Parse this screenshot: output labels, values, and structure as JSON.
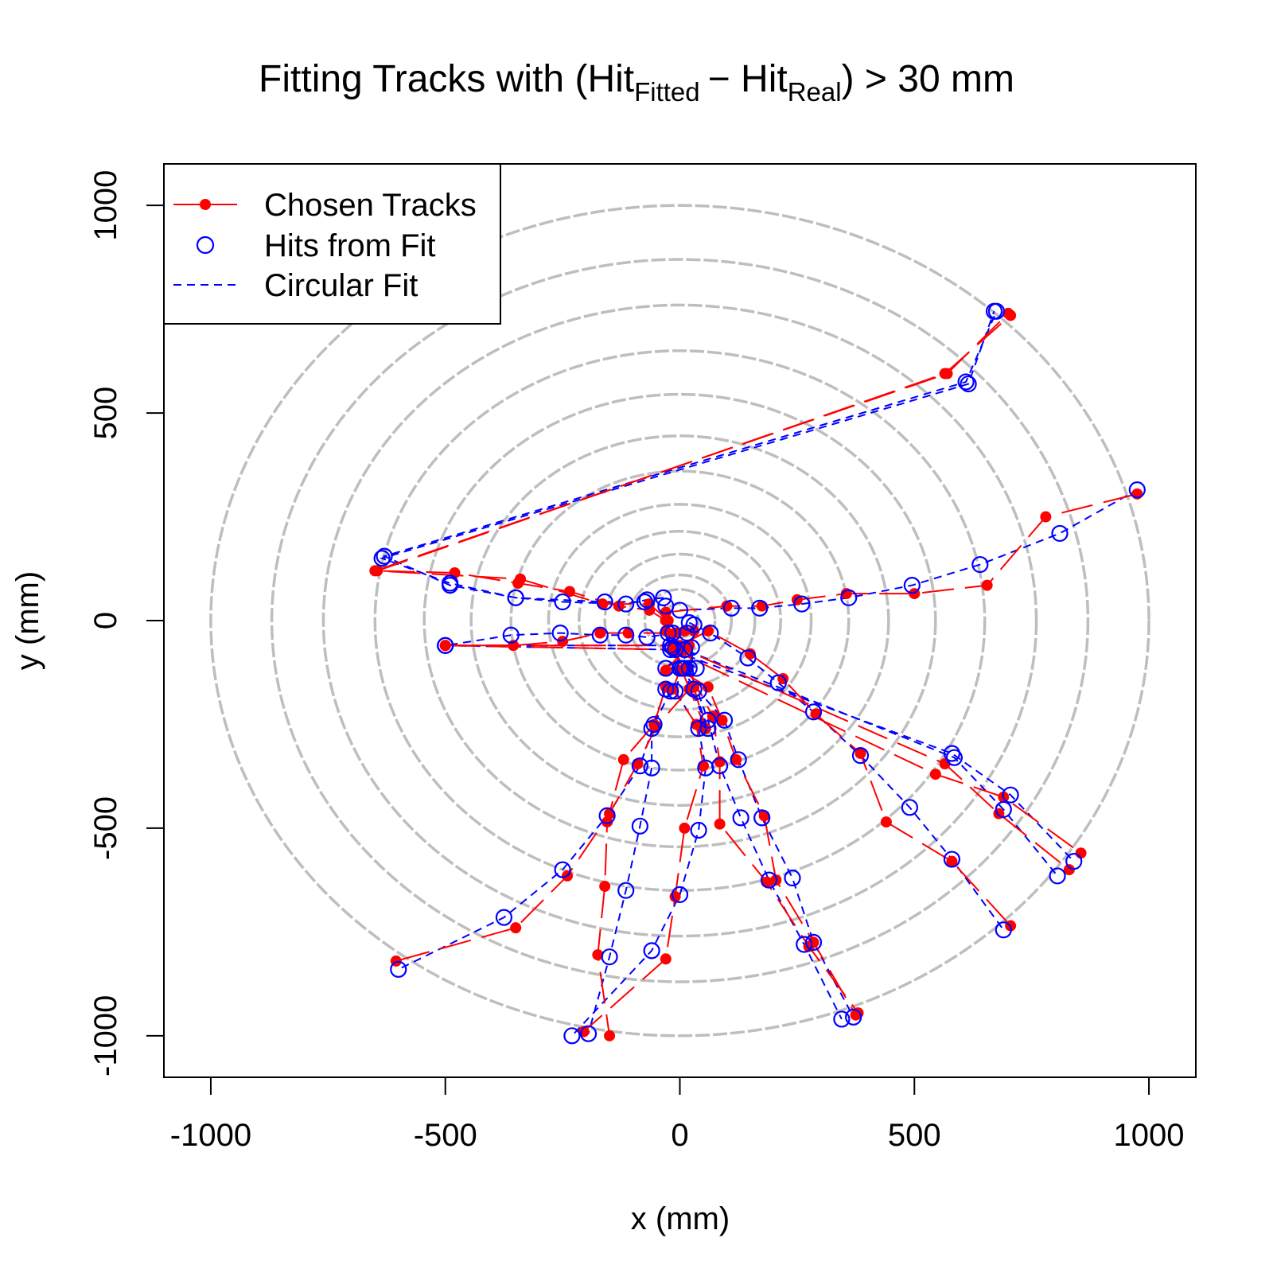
{
  "chart_data": {
    "type": "scatter",
    "title": {
      "prefix": "Fitting Tracks with (Hit",
      "sub1": "Fitted",
      "minus": "− Hit",
      "sub2": "Real",
      "suffix": ") > 30 mm"
    },
    "xlabel": "x (mm)",
    "ylabel": "y (mm)",
    "xlim": [
      -1100,
      1100
    ],
    "ylim": [
      -1100,
      1100
    ],
    "xticks": [
      -1000,
      -500,
      0,
      500,
      1000
    ],
    "yticks": [
      -1000,
      -500,
      0,
      500,
      1000
    ],
    "tick_labels": [
      "-1000",
      "-500",
      "0",
      "500",
      "1000"
    ],
    "grid": false,
    "detector_layer_radii": [
      40,
      75,
      110,
      160,
      215,
      280,
      360,
      445,
      545,
      650,
      760,
      870,
      1000
    ],
    "legend": {
      "position": "top-left",
      "entries": [
        "Chosen Tracks",
        "Hits from Fit",
        "Circular Fit"
      ]
    },
    "colors": {
      "real": "#ff0000",
      "fit": "#0000ff",
      "layers": "#bebebe"
    },
    "tracks": [
      {
        "real": [
          [
            -30,
            0
          ],
          [
            -65,
            25
          ],
          [
            -130,
            35
          ],
          [
            -235,
            70
          ],
          [
            -345,
            90
          ],
          [
            -480,
            115
          ],
          [
            -650,
            120
          ],
          [
            570,
            595
          ],
          [
            700,
            740
          ]
        ],
        "fit": [
          [
            -35,
            55
          ],
          [
            -70,
            50
          ],
          [
            -115,
            40
          ],
          [
            -250,
            45
          ],
          [
            -350,
            55
          ],
          [
            -490,
            90
          ],
          [
            -635,
            150
          ],
          [
            615,
            570
          ],
          [
            670,
            745
          ]
        ]
      },
      {
        "real": [
          [
            -25,
            0
          ],
          [
            -65,
            40
          ],
          [
            -165,
            40
          ],
          [
            -340,
            100
          ],
          [
            -645,
            120
          ],
          [
            565,
            595
          ],
          [
            705,
            735
          ]
        ],
        "fit": [
          [
            -30,
            35
          ],
          [
            -75,
            45
          ],
          [
            -160,
            45
          ],
          [
            -350,
            55
          ],
          [
            -490,
            85
          ],
          [
            -630,
            155
          ],
          [
            610,
            575
          ],
          [
            675,
            745
          ]
        ]
      },
      {
        "real": [
          [
            -30,
            20
          ],
          [
            100,
            35
          ],
          [
            175,
            35
          ],
          [
            250,
            50
          ],
          [
            355,
            65
          ],
          [
            500,
            65
          ],
          [
            655,
            85
          ],
          [
            780,
            250
          ],
          [
            975,
            305
          ]
        ],
        "fit": [
          [
            0,
            25
          ],
          [
            110,
            30
          ],
          [
            170,
            30
          ],
          [
            260,
            40
          ],
          [
            360,
            55
          ],
          [
            495,
            85
          ],
          [
            640,
            135
          ],
          [
            810,
            210
          ],
          [
            975,
            315
          ]
        ]
      },
      {
        "real": [
          [
            -10,
            -30
          ],
          [
            -110,
            -30
          ],
          [
            -170,
            -30
          ],
          [
            -250,
            -50
          ],
          [
            -355,
            -60
          ],
          [
            -500,
            -60
          ]
        ],
        "fit": [
          [
            -15,
            -30
          ],
          [
            -70,
            -40
          ],
          [
            -115,
            -35
          ],
          [
            -170,
            -35
          ],
          [
            -255,
            -30
          ],
          [
            -360,
            -35
          ],
          [
            -500,
            -60
          ]
        ]
      },
      {
        "real": [
          [
            -500,
            -60
          ],
          [
            -15,
            -70
          ],
          [
            545,
            -370
          ],
          [
            690,
            -425
          ],
          [
            855,
            -560
          ]
        ],
        "fit": [
          [
            -500,
            -60
          ],
          [
            -20,
            -70
          ],
          [
            580,
            -320
          ],
          [
            705,
            -420
          ],
          [
            840,
            -580
          ]
        ]
      },
      {
        "real": [
          [
            -500,
            -60
          ],
          [
            -10,
            -60
          ],
          [
            10,
            -70
          ],
          [
            565,
            -345
          ],
          [
            680,
            -465
          ],
          [
            830,
            -600
          ]
        ],
        "fit": [
          [
            -500,
            -60
          ],
          [
            -20,
            -60
          ],
          [
            10,
            -70
          ],
          [
            585,
            -330
          ],
          [
            690,
            -455
          ],
          [
            805,
            -615
          ]
        ]
      },
      {
        "real": [
          [
            0,
            -60
          ],
          [
            60,
            -25
          ],
          [
            150,
            -80
          ],
          [
            220,
            -140
          ],
          [
            290,
            -225
          ],
          [
            385,
            -320
          ],
          [
            440,
            -485
          ],
          [
            580,
            -580
          ],
          [
            705,
            -735
          ]
        ],
        "fit": [
          [
            20,
            -5
          ],
          [
            65,
            -30
          ],
          [
            145,
            -90
          ],
          [
            210,
            -150
          ],
          [
            285,
            -220
          ],
          [
            385,
            -325
          ],
          [
            490,
            -450
          ],
          [
            580,
            -575
          ],
          [
            690,
            -745
          ]
        ]
      },
      {
        "real": [
          [
            0,
            -120
          ],
          [
            60,
            -160
          ],
          [
            90,
            -240
          ],
          [
            120,
            -335
          ],
          [
            180,
            -470
          ],
          [
            205,
            -625
          ],
          [
            285,
            -775
          ],
          [
            375,
            -950
          ]
        ],
        "fit": [
          [
            0,
            -115
          ],
          [
            40,
            -170
          ],
          [
            95,
            -240
          ],
          [
            125,
            -335
          ],
          [
            175,
            -475
          ],
          [
            240,
            -620
          ],
          [
            285,
            -775
          ],
          [
            370,
            -955
          ]
        ]
      },
      {
        "real": [
          [
            15,
            -115
          ],
          [
            70,
            -230
          ],
          [
            85,
            -340
          ],
          [
            85,
            -490
          ],
          [
            185,
            -630
          ],
          [
            275,
            -785
          ],
          [
            380,
            -945
          ]
        ],
        "fit": [
          [
            20,
            -115
          ],
          [
            60,
            -240
          ],
          [
            85,
            -350
          ],
          [
            130,
            -475
          ],
          [
            190,
            -625
          ],
          [
            265,
            -780
          ],
          [
            345,
            -960
          ]
        ]
      },
      {
        "real": [
          [
            0,
            -120
          ],
          [
            -15,
            -165
          ],
          [
            35,
            -250
          ],
          [
            50,
            -350
          ],
          [
            10,
            -500
          ],
          [
            -10,
            -665
          ],
          [
            -30,
            -815
          ],
          [
            -205,
            -990
          ]
        ],
        "fit": [
          [
            5,
            -115
          ],
          [
            -10,
            -170
          ],
          [
            40,
            -260
          ],
          [
            55,
            -355
          ],
          [
            40,
            -505
          ],
          [
            0,
            -660
          ],
          [
            -60,
            -795
          ],
          [
            -230,
            -1000
          ]
        ]
      },
      {
        "real": [
          [
            20,
            -165
          ],
          [
            -50,
            -255
          ],
          [
            -90,
            -345
          ],
          [
            -150,
            -465
          ],
          [
            -240,
            -615
          ],
          [
            -350,
            -740
          ],
          [
            -605,
            -820
          ]
        ],
        "fit": [
          [
            -20,
            -170
          ],
          [
            -55,
            -250
          ],
          [
            -85,
            -350
          ],
          [
            -155,
            -470
          ],
          [
            -250,
            -600
          ],
          [
            -375,
            -715
          ],
          [
            -600,
            -840
          ]
        ]
      },
      {
        "real": [
          [
            -30,
            -160
          ],
          [
            -55,
            -250
          ],
          [
            -120,
            -335
          ],
          [
            -155,
            -485
          ],
          [
            -160,
            -640
          ],
          [
            -175,
            -805
          ],
          [
            -150,
            -1000
          ]
        ],
        "fit": [
          [
            -30,
            -165
          ],
          [
            -60,
            -260
          ],
          [
            -60,
            -355
          ],
          [
            -85,
            -495
          ],
          [
            -115,
            -650
          ],
          [
            -150,
            -810
          ],
          [
            -195,
            -995
          ]
        ]
      },
      {
        "real": [
          [
            -10,
            -70
          ],
          [
            10,
            -70
          ],
          [
            -30,
            -120
          ],
          [
            10,
            -120
          ],
          [
            -15,
            -60
          ],
          [
            20,
            -60
          ],
          [
            30,
            -160
          ],
          [
            55,
            -260
          ],
          [
            -30,
            -25
          ],
          [
            10,
            -25
          ],
          [
            30,
            -25
          ]
        ],
        "fit": [
          [
            -10,
            -70
          ],
          [
            10,
            -70
          ],
          [
            -30,
            -115
          ],
          [
            10,
            -115
          ],
          [
            35,
            -115
          ],
          [
            -15,
            -65
          ],
          [
            25,
            -65
          ],
          [
            30,
            -165
          ],
          [
            60,
            -260
          ],
          [
            -25,
            -30
          ],
          [
            15,
            -30
          ],
          [
            30,
            -10
          ]
        ]
      }
    ]
  }
}
